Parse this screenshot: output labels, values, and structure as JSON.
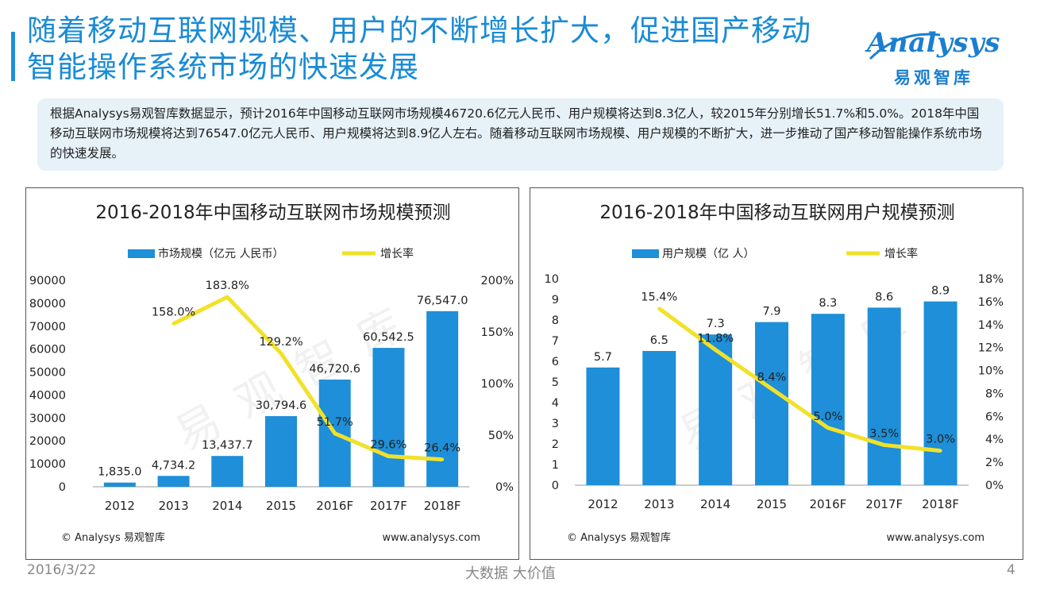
{
  "page": {
    "title_line1": "随着移动互联网规模、用户的不断增长扩大，促进国产移动",
    "title_line2": "智能操作系统市场的快速发展",
    "summary": "根据Analysys易观智库数据显示，预计2016年中国移动互联网市场规模46720.6亿元人民币、用户规模将达到8.3亿人，较2015年分别增长51.7%和5.0%。2018年中国移动互联网市场规模将达到76547.0亿元人民币、用户规模将达到8.9亿人左右。随着移动互联网市场规模、用户规模的不断扩大，进一步推动了国产移动智能操作系统市场的快速发展。",
    "logo_text": "Analysys",
    "logo_cn": "易观智库",
    "watermark": "易观智库",
    "footer_date": "2016/3/22",
    "footer_slogan": "大数据    大价值",
    "page_number": "4",
    "colors": {
      "title": "#1a8bd5",
      "bar": "#1e8fd8",
      "line": "#f2e12a"
    }
  },
  "chart_data": [
    {
      "type": "bar+line",
      "title": "2016-2018年中国移动互联网市场规模预测",
      "categories": [
        "2012",
        "2013",
        "2014",
        "2015",
        "2016F",
        "2017F",
        "2018F"
      ],
      "series": [
        {
          "name": "市场规模（亿元 人民币）",
          "kind": "bar",
          "axis": "left",
          "values": [
            1835.0,
            4734.2,
            13437.7,
            30794.6,
            46720.6,
            60542.5,
            76547.0
          ],
          "labels": [
            "1,835.0",
            "4,734.2",
            "13,437.7",
            "30,794.6",
            "46,720.6",
            "60,542.5",
            "76,547.0"
          ]
        },
        {
          "name": "增长率",
          "kind": "line",
          "axis": "right",
          "values": [
            null,
            158.0,
            183.8,
            129.2,
            51.7,
            29.6,
            26.4
          ],
          "labels": [
            "",
            "158.0%",
            "183.8%",
            "129.2%",
            "51.7%",
            "29.6%",
            "26.4%"
          ]
        }
      ],
      "ylim_left": [
        0,
        90000
      ],
      "yticks_left": [
        "90000",
        "80000",
        "70000",
        "60000",
        "50000",
        "40000",
        "30000",
        "20000",
        "10000",
        "0"
      ],
      "ylim_right": [
        0,
        200
      ],
      "yticks_right": [
        "200%",
        "150%",
        "100%",
        "50%",
        "0%"
      ],
      "source": "© Analysys 易观智库",
      "website": "www.analysys.com"
    },
    {
      "type": "bar+line",
      "title": "2016-2018年中国移动互联网用户规模预测",
      "categories": [
        "2012",
        "2013",
        "2014",
        "2015",
        "2016F",
        "2017F",
        "2018F"
      ],
      "series": [
        {
          "name": "用户规模（亿 人）",
          "kind": "bar",
          "axis": "left",
          "values": [
            5.7,
            6.5,
            7.3,
            7.9,
            8.3,
            8.6,
            8.9
          ],
          "labels": [
            "5.7",
            "6.5",
            "7.3",
            "7.9",
            "8.3",
            "8.6",
            "8.9"
          ]
        },
        {
          "name": "增长率",
          "kind": "line",
          "axis": "right",
          "values": [
            null,
            15.4,
            11.8,
            8.4,
            5.0,
            3.5,
            3.0
          ],
          "labels": [
            "",
            "15.4%",
            "11.8%",
            "8.4%",
            "5.0%",
            "3.5%",
            "3.0%"
          ]
        }
      ],
      "ylim_left": [
        0,
        10
      ],
      "yticks_left": [
        "10",
        "9",
        "8",
        "7",
        "6",
        "5",
        "4",
        "3",
        "2",
        "1",
        "0"
      ],
      "ylim_right": [
        0,
        18
      ],
      "yticks_right": [
        "18%",
        "16%",
        "14%",
        "12%",
        "10%",
        "8%",
        "6%",
        "4%",
        "2%",
        "0%"
      ],
      "source": "© Analysys 易观智库",
      "website": "www.analysys.com"
    }
  ]
}
